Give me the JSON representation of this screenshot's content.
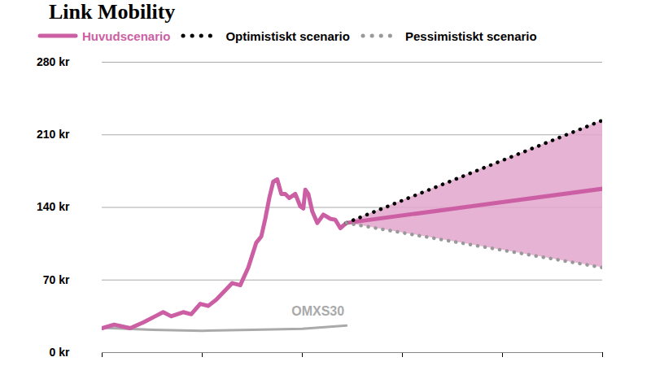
{
  "chart_data": {
    "type": "line",
    "title": "Link Mobility",
    "series": [
      {
        "name": "Huvudscenario",
        "color": "#cc5fa4",
        "line_style": "solid",
        "x": [
          0,
          0.12,
          0.28,
          0.41,
          0.53,
          0.61,
          0.69,
          0.81,
          0.89,
          0.98,
          1.06,
          1.14,
          1.22,
          1.3,
          1.38,
          1.46,
          1.54,
          1.59,
          1.63,
          1.67,
          1.71,
          1.75,
          1.79,
          1.83,
          1.87,
          1.93,
          1.98,
          2.01,
          2.03,
          2.06,
          2.1,
          2.15,
          2.21,
          2.28,
          2.33,
          2.38,
          2.44,
          5
        ],
        "values": [
          23.5,
          27,
          23.5,
          29,
          35,
          39,
          35,
          39,
          37,
          47,
          45,
          51,
          59,
          67,
          65,
          82,
          106,
          112,
          129,
          149,
          165,
          167,
          153,
          153,
          149,
          153,
          141,
          139,
          157,
          153,
          136,
          125,
          133,
          129,
          128,
          120,
          125,
          158
        ]
      },
      {
        "name": "Optimistiskt scenario",
        "color": "#000000",
        "line_style": "dotted",
        "x": [
          2.44,
          5
        ],
        "values": [
          125,
          224
        ]
      },
      {
        "name": "Pessimistiskt scenario",
        "color": "#999999",
        "line_style": "dotted",
        "x": [
          2.44,
          5
        ],
        "values": [
          125,
          82
        ]
      },
      {
        "name": "OMXS30",
        "color": "#aaaaaa",
        "line_style": "solid",
        "x": [
          0,
          0.5,
          1,
          1.5,
          2,
          2.44
        ],
        "values": [
          24,
          22,
          21,
          22,
          23,
          26
        ]
      }
    ],
    "annotations": [
      {
        "text": "OMXS30",
        "x": 2.42,
        "y": 40
      }
    ],
    "xlim": [
      0,
      5
    ],
    "xticks": [
      0,
      1,
      2,
      3,
      4,
      5
    ],
    "ylim": [
      0,
      280
    ],
    "yticks": [
      {
        "value": 0,
        "label": "0 kr"
      },
      {
        "value": 70,
        "label": "70 kr"
      },
      {
        "value": 140,
        "label": "140 kr"
      },
      {
        "value": 210,
        "label": "210 kr"
      },
      {
        "value": 280,
        "label": "280 kr"
      }
    ],
    "grid": true,
    "legend": "top",
    "tick_labels": "y"
  }
}
